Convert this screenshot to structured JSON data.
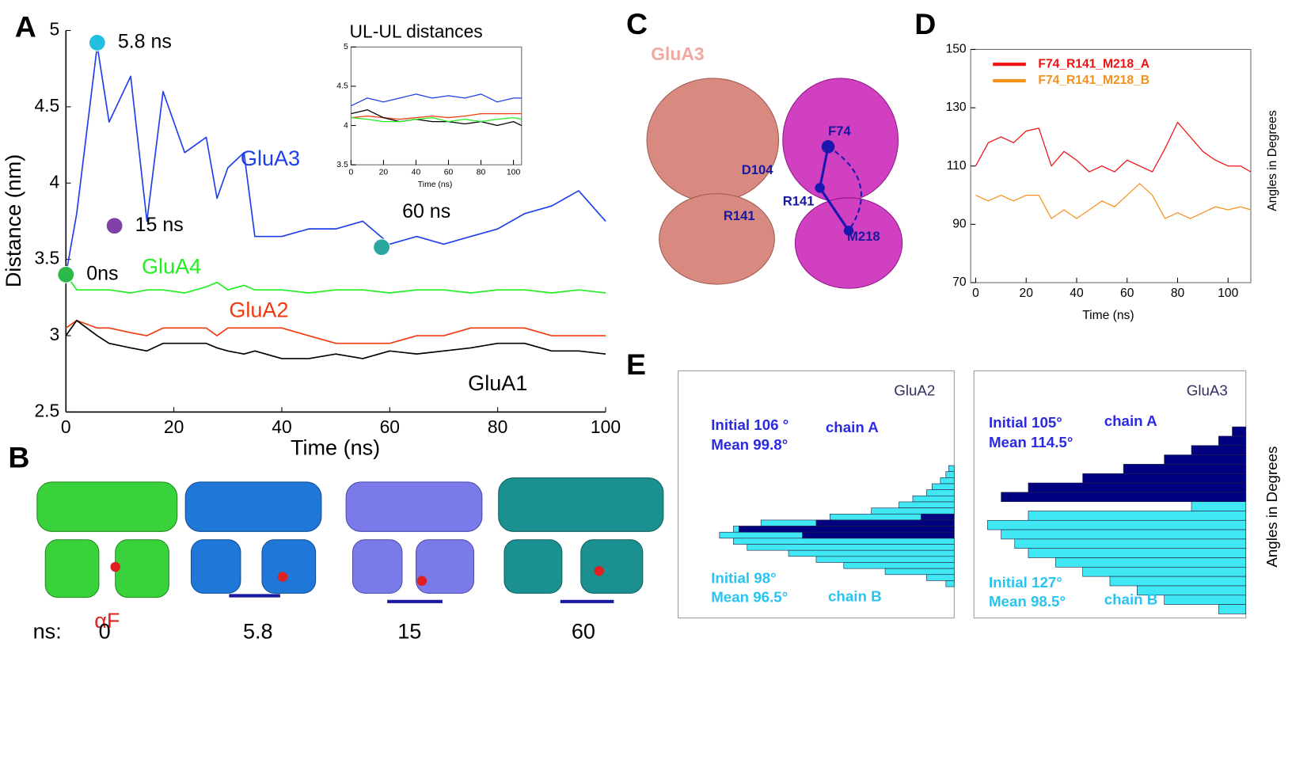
{
  "panels": {
    "letters": [
      "A",
      "B",
      "C",
      "D",
      "E"
    ],
    "b": {
      "prefix": "ns:",
      "frames": [
        "0",
        "5.8",
        "15",
        "60"
      ],
      "helix": "αF"
    },
    "c": {
      "title": "GluA3",
      "residues": [
        "F74",
        "D104",
        "R141",
        "R141",
        "M218"
      ]
    }
  },
  "chart_data": [
    {
      "type": "line",
      "xlabel": "Time (ns)",
      "ylabel": "Distance (nm)",
      "x": [
        0,
        2,
        5.8,
        8,
        12,
        15,
        18,
        22,
        26,
        28,
        30,
        33,
        35,
        40,
        45,
        50,
        55,
        60,
        65,
        70,
        75,
        80,
        85,
        90,
        95,
        100
      ],
      "series": [
        {
          "name": "GluA3",
          "color": "#1f3fe8",
          "values": [
            3.4,
            3.8,
            4.9,
            4.4,
            4.7,
            3.75,
            4.6,
            4.2,
            4.3,
            3.9,
            4.1,
            4.2,
            3.65,
            3.65,
            3.7,
            3.7,
            3.75,
            3.6,
            3.65,
            3.6,
            3.65,
            3.7,
            3.8,
            3.85,
            3.95,
            3.75
          ]
        },
        {
          "name": "GluA4",
          "color": "#22ee22",
          "values": [
            3.4,
            3.3,
            3.3,
            3.3,
            3.28,
            3.3,
            3.3,
            3.28,
            3.32,
            3.35,
            3.3,
            3.33,
            3.3,
            3.3,
            3.28,
            3.3,
            3.3,
            3.28,
            3.3,
            3.3,
            3.28,
            3.3,
            3.3,
            3.28,
            3.3,
            3.28
          ]
        },
        {
          "name": "GluA2",
          "color": "#f03a10",
          "values": [
            3.05,
            3.1,
            3.05,
            3.05,
            3.02,
            3.0,
            3.05,
            3.05,
            3.05,
            3.0,
            3.05,
            3.05,
            3.05,
            3.05,
            3.0,
            2.95,
            2.95,
            2.95,
            3.0,
            3.0,
            3.05,
            3.05,
            3.05,
            3.0,
            3.0,
            3.0
          ]
        },
        {
          "name": "GluA1",
          "color": "#000000",
          "values": [
            3.0,
            3.1,
            3.0,
            2.95,
            2.92,
            2.9,
            2.95,
            2.95,
            2.95,
            2.92,
            2.9,
            2.88,
            2.9,
            2.85,
            2.85,
            2.88,
            2.85,
            2.9,
            2.88,
            2.9,
            2.92,
            2.95,
            2.95,
            2.9,
            2.9,
            2.88
          ]
        }
      ],
      "annotations": [
        {
          "label": "0ns",
          "x": 0,
          "y": 3.4,
          "color": "#2cb84a"
        },
        {
          "label": "5.8 ns",
          "x": 5.8,
          "y": 4.92,
          "color": "#22c0e0"
        },
        {
          "label": "15 ns",
          "x": 9,
          "y": 3.72,
          "color": "#8040a8"
        },
        {
          "label": "60 ns",
          "x": 58.5,
          "y": 3.58,
          "color": "#2aa8a0"
        }
      ],
      "xlim": [
        0,
        100
      ],
      "ylim": [
        2.5,
        5
      ],
      "xticks": [
        0,
        20,
        40,
        60,
        80,
        100
      ],
      "yticks": [
        2.5,
        3,
        3.5,
        4,
        4.5,
        5
      ]
    },
    {
      "type": "line",
      "title": "UL-UL distances",
      "xlabel": "Time (ns)",
      "x": [
        0,
        10,
        20,
        30,
        40,
        50,
        60,
        70,
        80,
        90,
        100,
        105
      ],
      "series": [
        {
          "name": "GluA3",
          "color": "#1f3fe8",
          "values": [
            4.25,
            4.35,
            4.3,
            4.35,
            4.4,
            4.35,
            4.38,
            4.35,
            4.4,
            4.3,
            4.35,
            4.35
          ]
        },
        {
          "name": "GluA2",
          "color": "#f03a10",
          "values": [
            4.1,
            4.12,
            4.1,
            4.08,
            4.1,
            4.12,
            4.1,
            4.12,
            4.15,
            4.15,
            4.15,
            4.15
          ]
        },
        {
          "name": "GluA1",
          "color": "#000000",
          "values": [
            4.15,
            4.2,
            4.1,
            4.05,
            4.08,
            4.05,
            4.05,
            4.02,
            4.05,
            4.0,
            4.05,
            4.0
          ]
        },
        {
          "name": "GluA4",
          "color": "#22ee22",
          "values": [
            4.1,
            4.08,
            4.05,
            4.05,
            4.08,
            4.1,
            4.05,
            4.08,
            4.05,
            4.08,
            4.1,
            4.08
          ]
        }
      ],
      "xlim": [
        0,
        105
      ],
      "ylim": [
        3.5,
        5
      ],
      "xticks": [
        0,
        20,
        40,
        60,
        80,
        100
      ],
      "yticks": [
        3.5,
        4,
        4.5,
        5
      ]
    },
    {
      "type": "line",
      "xlabel": "Time (ns)",
      "ylabel": "Angles in Degrees",
      "x": [
        0,
        5,
        10,
        15,
        20,
        25,
        30,
        35,
        40,
        45,
        50,
        55,
        60,
        65,
        70,
        75,
        80,
        85,
        90,
        95,
        100,
        105,
        109
      ],
      "series": [
        {
          "name": "F74_R141_M218_A",
          "color": "#ee1111",
          "values": [
            110,
            118,
            120,
            118,
            122,
            123,
            110,
            115,
            112,
            108,
            110,
            108,
            112,
            110,
            108,
            116,
            125,
            120,
            115,
            112,
            110,
            110,
            108
          ]
        },
        {
          "name": "F74_R141_M218_B",
          "color": "#f5921e",
          "values": [
            100,
            98,
            100,
            98,
            100,
            100,
            92,
            95,
            92,
            95,
            98,
            96,
            100,
            104,
            100,
            92,
            94,
            92,
            94,
            96,
            95,
            96,
            95
          ]
        }
      ],
      "xlim": [
        -2,
        109
      ],
      "ylim": [
        70,
        150
      ],
      "xticks": [
        0,
        20,
        40,
        60,
        80,
        100
      ],
      "yticks": [
        70,
        90,
        110,
        130,
        150
      ]
    },
    {
      "type": "hist",
      "title": "GluA2",
      "series": [
        {
          "name": "chain B",
          "color": "#40e8f4",
          "values": [
            2,
            3,
            5,
            8,
            10,
            15,
            20,
            30,
            45,
            70,
            80,
            85,
            80,
            75,
            60,
            50,
            40,
            25,
            10,
            3
          ]
        },
        {
          "name": "chain A",
          "color": "#000080",
          "values": [
            0,
            0,
            0,
            0,
            0,
            0,
            0,
            0,
            12,
            50,
            78,
            55,
            0,
            0,
            0,
            0,
            0,
            0,
            0,
            0
          ]
        }
      ],
      "notes": [
        "Initial 106 °",
        "Mean 99.8°",
        "Initial 98°",
        "Mean 96.5°"
      ]
    },
    {
      "type": "hist",
      "title": "GluA3",
      "ylabel": "Angles in Degrees",
      "series": [
        {
          "name": "chain B",
          "color": "#40e8f4",
          "values": [
            0,
            0,
            0,
            0,
            0,
            3,
            5,
            8,
            20,
            80,
            95,
            90,
            85,
            80,
            70,
            60,
            50,
            40,
            30,
            10
          ]
        },
        {
          "name": "chain A",
          "color": "#000080",
          "values": [
            5,
            10,
            20,
            30,
            45,
            60,
            80,
            90,
            0,
            0,
            0,
            0,
            0,
            0,
            0,
            0,
            0,
            0,
            0,
            0
          ]
        }
      ],
      "notes": [
        "Initial 105°",
        "Mean 114.5°",
        "Initial 127°",
        "Mean 98.5°"
      ]
    }
  ]
}
